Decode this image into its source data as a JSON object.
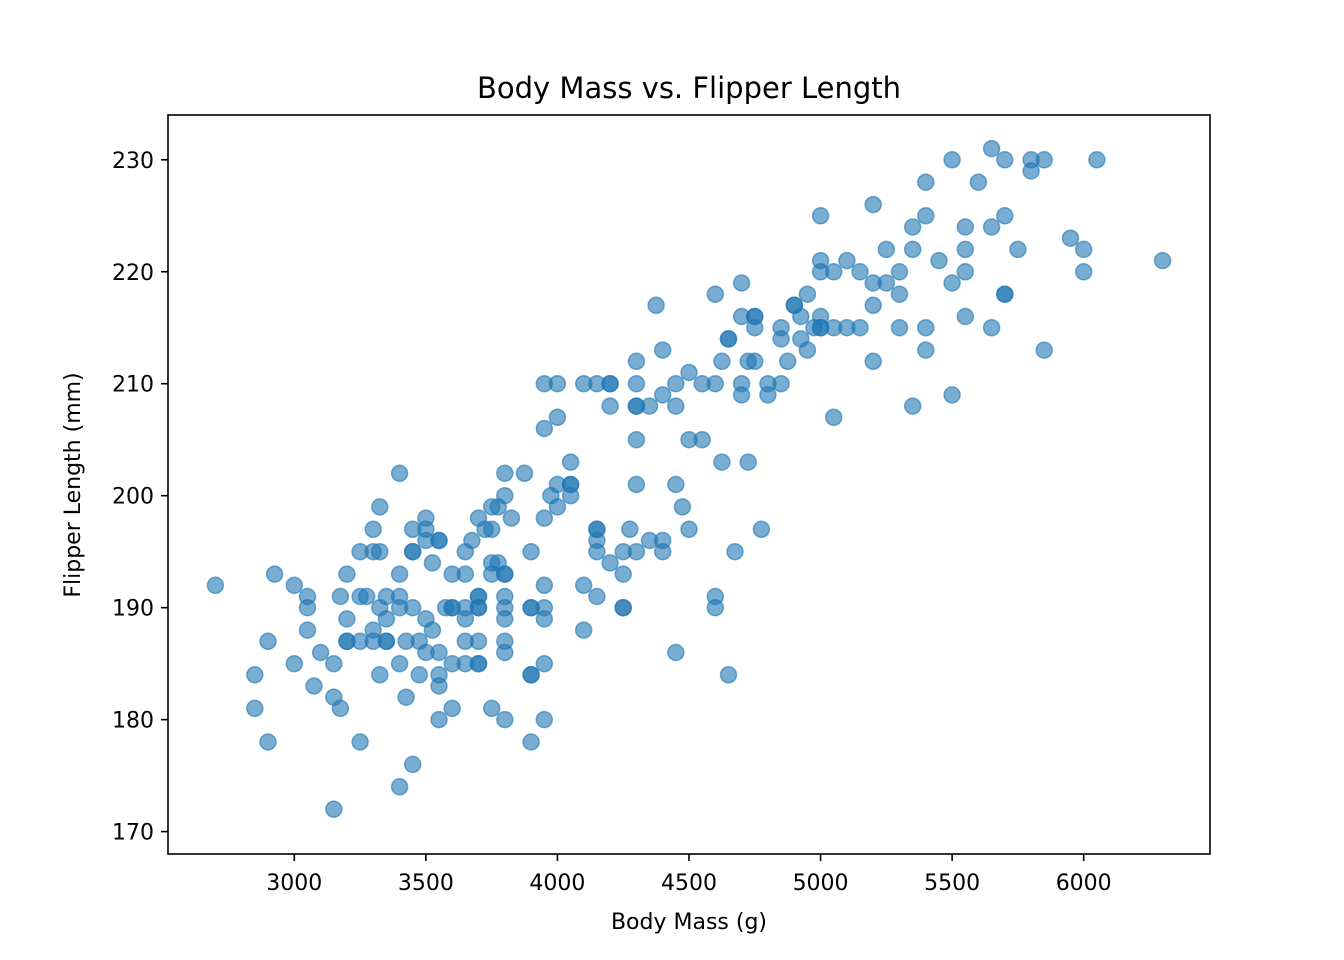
{
  "chart_data": {
    "type": "scatter",
    "title": "Body Mass vs. Flipper Length",
    "xlabel": "Body Mass (g)",
    "ylabel": "Flipper Length (mm)",
    "xlim": [
      2520,
      6480
    ],
    "ylim": [
      168,
      234
    ],
    "xticks": [
      3000,
      3500,
      4000,
      4500,
      5000,
      5500,
      6000
    ],
    "yticks": [
      170,
      180,
      190,
      200,
      210,
      220,
      230
    ],
    "grid": false,
    "legend": "none",
    "marker_color": "#1f77b4",
    "marker_alpha": 0.6,
    "points": [
      [
        2700,
        192
      ],
      [
        2850,
        184
      ],
      [
        2850,
        181
      ],
      [
        2900,
        187
      ],
      [
        2900,
        178
      ],
      [
        2925,
        193
      ],
      [
        3000,
        192
      ],
      [
        3000,
        185
      ],
      [
        3050,
        191
      ],
      [
        3050,
        190
      ],
      [
        3050,
        188
      ],
      [
        3075,
        183
      ],
      [
        3100,
        186
      ],
      [
        3150,
        185
      ],
      [
        3150,
        182
      ],
      [
        3150,
        172
      ],
      [
        3175,
        191
      ],
      [
        3175,
        181
      ],
      [
        3200,
        193
      ],
      [
        3200,
        189
      ],
      [
        3200,
        187
      ],
      [
        3200,
        187
      ],
      [
        3250,
        195
      ],
      [
        3250,
        191
      ],
      [
        3250,
        187
      ],
      [
        3250,
        178
      ],
      [
        3275,
        191
      ],
      [
        3300,
        197
      ],
      [
        3300,
        195
      ],
      [
        3300,
        188
      ],
      [
        3300,
        187
      ],
      [
        3325,
        199
      ],
      [
        3325,
        195
      ],
      [
        3325,
        190
      ],
      [
        3325,
        184
      ],
      [
        3350,
        191
      ],
      [
        3350,
        189
      ],
      [
        3350,
        187
      ],
      [
        3350,
        187
      ],
      [
        3400,
        202
      ],
      [
        3400,
        193
      ],
      [
        3400,
        191
      ],
      [
        3400,
        190
      ],
      [
        3400,
        185
      ],
      [
        3400,
        174
      ],
      [
        3425,
        187
      ],
      [
        3425,
        182
      ],
      [
        3450,
        197
      ],
      [
        3450,
        195
      ],
      [
        3450,
        195
      ],
      [
        3450,
        190
      ],
      [
        3450,
        176
      ],
      [
        3475,
        187
      ],
      [
        3475,
        184
      ],
      [
        3500,
        198
      ],
      [
        3500,
        197
      ],
      [
        3500,
        196
      ],
      [
        3500,
        189
      ],
      [
        3500,
        186
      ],
      [
        3525,
        194
      ],
      [
        3525,
        188
      ],
      [
        3550,
        196
      ],
      [
        3550,
        196
      ],
      [
        3550,
        186
      ],
      [
        3550,
        184
      ],
      [
        3550,
        183
      ],
      [
        3550,
        180
      ],
      [
        3575,
        190
      ],
      [
        3600,
        193
      ],
      [
        3600,
        190
      ],
      [
        3600,
        190
      ],
      [
        3600,
        185
      ],
      [
        3600,
        181
      ],
      [
        3650,
        195
      ],
      [
        3650,
        193
      ],
      [
        3650,
        190
      ],
      [
        3650,
        189
      ],
      [
        3650,
        187
      ],
      [
        3650,
        185
      ],
      [
        3675,
        196
      ],
      [
        3700,
        198
      ],
      [
        3700,
        191
      ],
      [
        3700,
        191
      ],
      [
        3700,
        190
      ],
      [
        3700,
        190
      ],
      [
        3700,
        187
      ],
      [
        3700,
        185
      ],
      [
        3700,
        185
      ],
      [
        3725,
        197
      ],
      [
        3750,
        199
      ],
      [
        3750,
        197
      ],
      [
        3750,
        194
      ],
      [
        3750,
        193
      ],
      [
        3750,
        181
      ],
      [
        3775,
        199
      ],
      [
        3775,
        194
      ],
      [
        3800,
        202
      ],
      [
        3800,
        200
      ],
      [
        3800,
        193
      ],
      [
        3800,
        193
      ],
      [
        3800,
        191
      ],
      [
        3800,
        190
      ],
      [
        3800,
        189
      ],
      [
        3800,
        187
      ],
      [
        3800,
        186
      ],
      [
        3800,
        180
      ],
      [
        3825,
        198
      ],
      [
        3875,
        202
      ],
      [
        3900,
        195
      ],
      [
        3900,
        190
      ],
      [
        3900,
        190
      ],
      [
        3900,
        184
      ],
      [
        3900,
        184
      ],
      [
        3900,
        178
      ],
      [
        3950,
        210
      ],
      [
        3950,
        206
      ],
      [
        3950,
        198
      ],
      [
        3950,
        192
      ],
      [
        3950,
        190
      ],
      [
        3950,
        189
      ],
      [
        3950,
        185
      ],
      [
        3950,
        180
      ],
      [
        3975,
        200
      ],
      [
        4000,
        210
      ],
      [
        4000,
        207
      ],
      [
        4000,
        201
      ],
      [
        4000,
        199
      ],
      [
        4050,
        203
      ],
      [
        4050,
        201
      ],
      [
        4050,
        201
      ],
      [
        4050,
        200
      ],
      [
        4100,
        210
      ],
      [
        4100,
        192
      ],
      [
        4100,
        188
      ],
      [
        4150,
        210
      ],
      [
        4150,
        197
      ],
      [
        4150,
        197
      ],
      [
        4150,
        196
      ],
      [
        4150,
        195
      ],
      [
        4150,
        191
      ],
      [
        4200,
        210
      ],
      [
        4200,
        210
      ],
      [
        4200,
        208
      ],
      [
        4200,
        194
      ],
      [
        4250,
        195
      ],
      [
        4250,
        193
      ],
      [
        4250,
        190
      ],
      [
        4250,
        190
      ],
      [
        4275,
        197
      ],
      [
        4300,
        212
      ],
      [
        4300,
        210
      ],
      [
        4300,
        208
      ],
      [
        4300,
        208
      ],
      [
        4300,
        205
      ],
      [
        4300,
        201
      ],
      [
        4300,
        195
      ],
      [
        4350,
        208
      ],
      [
        4350,
        196
      ],
      [
        4375,
        217
      ],
      [
        4400,
        213
      ],
      [
        4400,
        209
      ],
      [
        4400,
        196
      ],
      [
        4400,
        195
      ],
      [
        4450,
        210
      ],
      [
        4450,
        208
      ],
      [
        4450,
        201
      ],
      [
        4450,
        186
      ],
      [
        4475,
        199
      ],
      [
        4500,
        211
      ],
      [
        4500,
        205
      ],
      [
        4500,
        197
      ],
      [
        4550,
        210
      ],
      [
        4550,
        205
      ],
      [
        4600,
        218
      ],
      [
        4600,
        210
      ],
      [
        4600,
        191
      ],
      [
        4600,
        190
      ],
      [
        4625,
        212
      ],
      [
        4625,
        203
      ],
      [
        4650,
        214
      ],
      [
        4650,
        214
      ],
      [
        4650,
        184
      ],
      [
        4675,
        195
      ],
      [
        4700,
        219
      ],
      [
        4700,
        216
      ],
      [
        4700,
        210
      ],
      [
        4700,
        209
      ],
      [
        4725,
        212
      ],
      [
        4725,
        203
      ],
      [
        4750,
        216
      ],
      [
        4750,
        216
      ],
      [
        4750,
        215
      ],
      [
        4750,
        212
      ],
      [
        4775,
        197
      ],
      [
        4800,
        210
      ],
      [
        4800,
        209
      ],
      [
        4850,
        215
      ],
      [
        4850,
        214
      ],
      [
        4850,
        210
      ],
      [
        4875,
        212
      ],
      [
        4900,
        217
      ],
      [
        4900,
        217
      ],
      [
        4925,
        216
      ],
      [
        4925,
        214
      ],
      [
        4950,
        218
      ],
      [
        4950,
        213
      ],
      [
        4975,
        215
      ],
      [
        5000,
        225
      ],
      [
        5000,
        221
      ],
      [
        5000,
        220
      ],
      [
        5000,
        216
      ],
      [
        5000,
        215
      ],
      [
        5000,
        215
      ],
      [
        5050,
        220
      ],
      [
        5050,
        215
      ],
      [
        5050,
        207
      ],
      [
        5100,
        221
      ],
      [
        5100,
        215
      ],
      [
        5150,
        220
      ],
      [
        5150,
        215
      ],
      [
        5200,
        226
      ],
      [
        5200,
        219
      ],
      [
        5200,
        217
      ],
      [
        5200,
        212
      ],
      [
        5250,
        222
      ],
      [
        5250,
        219
      ],
      [
        5300,
        220
      ],
      [
        5300,
        218
      ],
      [
        5300,
        215
      ],
      [
        5350,
        224
      ],
      [
        5350,
        222
      ],
      [
        5350,
        208
      ],
      [
        5400,
        228
      ],
      [
        5400,
        225
      ],
      [
        5400,
        215
      ],
      [
        5400,
        213
      ],
      [
        5450,
        221
      ],
      [
        5500,
        230
      ],
      [
        5500,
        219
      ],
      [
        5500,
        209
      ],
      [
        5550,
        224
      ],
      [
        5550,
        222
      ],
      [
        5550,
        220
      ],
      [
        5550,
        216
      ],
      [
        5600,
        228
      ],
      [
        5650,
        231
      ],
      [
        5650,
        224
      ],
      [
        5650,
        215
      ],
      [
        5700,
        230
      ],
      [
        5700,
        225
      ],
      [
        5700,
        218
      ],
      [
        5700,
        218
      ],
      [
        5750,
        222
      ],
      [
        5800,
        230
      ],
      [
        5800,
        229
      ],
      [
        5850,
        230
      ],
      [
        5850,
        213
      ],
      [
        5950,
        223
      ],
      [
        6000,
        222
      ],
      [
        6000,
        220
      ],
      [
        6050,
        230
      ],
      [
        6300,
        221
      ]
    ]
  }
}
